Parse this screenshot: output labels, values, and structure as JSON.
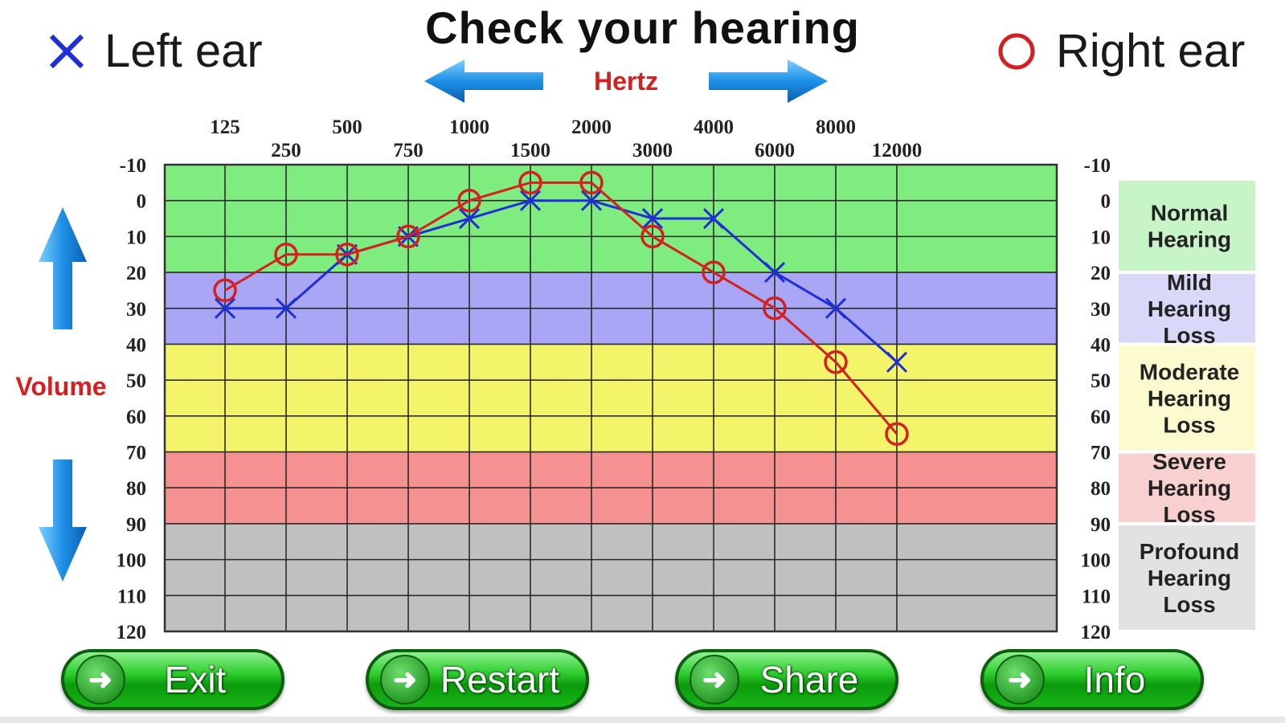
{
  "title": "Check your hearing",
  "legend": {
    "left_label": "Left ear",
    "right_label": "Right ear",
    "left_color": "#1f2fd6",
    "right_color": "#d42020"
  },
  "axis_labels": {
    "x": "Hertz",
    "y": "Volume",
    "color": "#d42020"
  },
  "chart_data": {
    "type": "line",
    "title": "Check your hearing",
    "xlabel": "Hertz",
    "ylabel": "Volume",
    "x": [
      "125",
      "250",
      "500",
      "750",
      "1000",
      "1500",
      "2000",
      "3000",
      "4000",
      "6000",
      "8000",
      "12000"
    ],
    "ylim": [
      -10,
      120
    ],
    "y_inverted": true,
    "y_ticks": [
      "-10",
      "0",
      "10",
      "20",
      "30",
      "40",
      "50",
      "60",
      "70",
      "80",
      "90",
      "100",
      "110",
      "120"
    ],
    "grid": true,
    "series": [
      {
        "name": "Left ear",
        "marker": "x",
        "color": "#1f2fd6",
        "values": [
          30,
          30,
          15,
          10,
          5,
          0,
          0,
          5,
          5,
          20,
          30,
          45
        ]
      },
      {
        "name": "Right ear",
        "marker": "o",
        "color": "#d42020",
        "values": [
          25,
          15,
          15,
          10,
          0,
          -5,
          -5,
          10,
          20,
          30,
          45,
          65
        ]
      }
    ],
    "bands": [
      {
        "label": "Normal Hearing",
        "from": -10,
        "to": 20,
        "color": "#7fec7f",
        "key_color": "#c8f5c8"
      },
      {
        "label": "Mild Hearing Loss",
        "from": 20,
        "to": 40,
        "color": "#a9a6f6",
        "key_color": "#d9d8f8"
      },
      {
        "label": "Moderate Hearing Loss",
        "from": 40,
        "to": 70,
        "color": "#f4f46a",
        "key_color": "#fbfbcf"
      },
      {
        "label": "Severe Hearing Loss",
        "from": 70,
        "to": 90,
        "color": "#f59191",
        "key_color": "#f9d0d0"
      },
      {
        "label": "Profound Hearing Loss",
        "from": 90,
        "to": 120,
        "color": "#c0c0c0",
        "key_color": "#e2e2e2"
      }
    ]
  },
  "buttons": {
    "exit": "Exit",
    "restart": "Restart",
    "share": "Share",
    "info": "Info"
  }
}
